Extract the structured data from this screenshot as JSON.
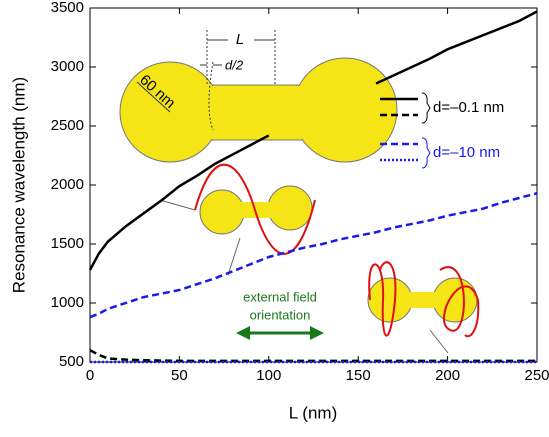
{
  "chart_data": {
    "type": "line",
    "ylabel": "Resonance wavelength (nm)",
    "xlabel": "L (nm)",
    "xlim": [
      0,
      250
    ],
    "xticks": [
      0,
      50,
      100,
      150,
      200,
      250
    ],
    "ylim": [
      500,
      3500
    ],
    "yticks": [
      500,
      1000,
      1500,
      2000,
      2500,
      3000,
      3500
    ],
    "x": [
      0,
      5,
      10,
      20,
      30,
      40,
      50,
      60,
      70,
      80,
      90,
      100,
      110,
      120,
      130,
      140,
      150,
      160,
      170,
      180,
      190,
      200,
      210,
      220,
      230,
      240,
      250
    ],
    "legend_groups": [
      {
        "label": "d=–0.1 nm",
        "color": "#000000"
      },
      {
        "label": "d=–10 nm",
        "color": "#1a1aee"
      }
    ],
    "series": [
      {
        "group": 0,
        "dash": "solid",
        "color": "#000000",
        "values": [
          1280,
          1420,
          1520,
          1650,
          1760,
          1870,
          1990,
          2080,
          2180,
          2260,
          2340,
          2420,
          null,
          null,
          null,
          null,
          null,
          2860,
          2930,
          3000,
          3070,
          3150,
          3210,
          3270,
          3330,
          3390,
          3470
        ]
      },
      {
        "group": 0,
        "dash": "dashed",
        "color": "#000000",
        "values": [
          600,
          560,
          530,
          520,
          515,
          512,
          510,
          510,
          510,
          510,
          510,
          510,
          510,
          510,
          510,
          510,
          510,
          510,
          510,
          510,
          510,
          510,
          510,
          510,
          510,
          510,
          510
        ]
      },
      {
        "group": 1,
        "dash": "dashed",
        "color": "#1a1aee",
        "values": [
          880,
          910,
          950,
          1000,
          1050,
          1080,
          1110,
          1160,
          1210,
          1270,
          1330,
          1390,
          1430,
          1470,
          1500,
          1540,
          1570,
          1600,
          1640,
          1670,
          1700,
          1740,
          1770,
          1800,
          1850,
          1890,
          1930
        ]
      },
      {
        "group": 1,
        "dash": "dotted",
        "color": "#1a1aee",
        "values": [
          500,
          500,
          500,
          500,
          500,
          500,
          500,
          500,
          500,
          500,
          500,
          500,
          500,
          500,
          500,
          500,
          500,
          500,
          500,
          500,
          500,
          500,
          500,
          500,
          500,
          500,
          500
        ]
      }
    ],
    "annotations": {
      "length": "L",
      "half_gap": "d/2",
      "radius": "60 nm",
      "field_1": "external field",
      "field_2": "orientation"
    }
  }
}
